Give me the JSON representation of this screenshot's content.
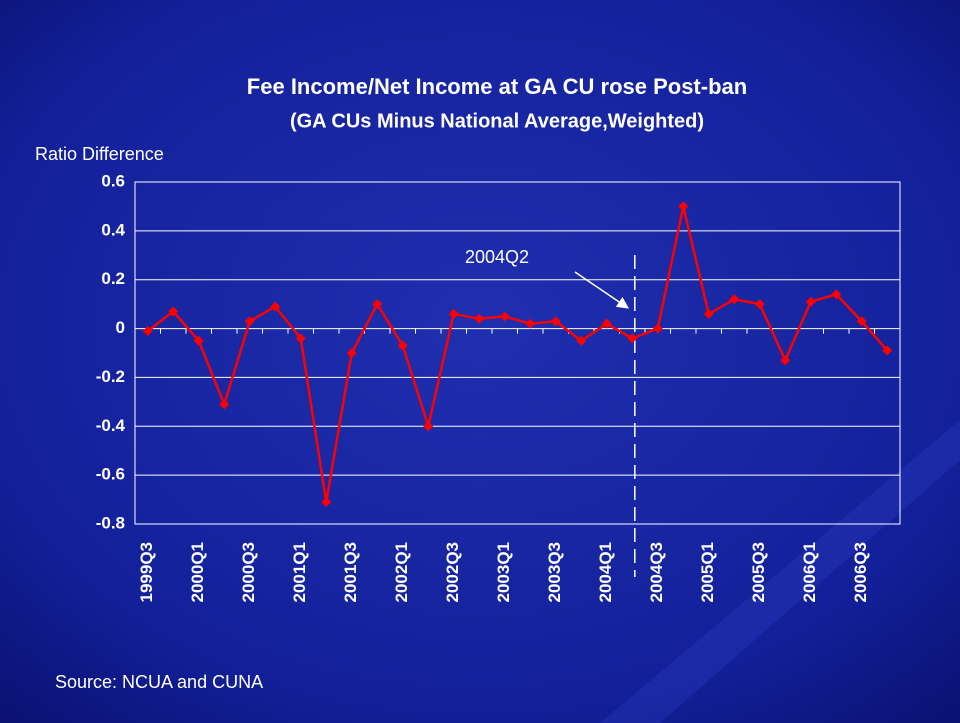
{
  "chart_data": {
    "type": "line",
    "title": "Fee Income/Net Income at GA CU rose Post-ban",
    "subtitle": "(GA CUs Minus National Average,Weighted)",
    "y_label": "Ratio Difference",
    "source": "Source: NCUA and CUNA",
    "annotation": "2004Q2",
    "categories": [
      "1999Q3",
      null,
      "2000Q1",
      null,
      "2000Q3",
      null,
      "2001Q1",
      null,
      "2001Q3",
      null,
      "2002Q1",
      null,
      "2002Q3",
      null,
      "2003Q1",
      null,
      "2003Q3",
      null,
      "2004Q1",
      null,
      "2004Q3",
      null,
      "2005Q1",
      null,
      "2005Q3",
      null,
      "2006Q1",
      null,
      "2006Q3",
      null
    ],
    "series": [
      {
        "name": "GA CUs Minus National Average",
        "color": "#ff0000",
        "values": [
          -0.01,
          0.07,
          -0.05,
          -0.31,
          0.03,
          0.09,
          -0.04,
          -0.71,
          -0.1,
          0.1,
          -0.07,
          -0.4,
          0.06,
          0.04,
          0.05,
          0.02,
          0.03,
          -0.05,
          0.02,
          -0.04,
          0.0,
          0.5,
          0.06,
          0.12,
          0.1,
          -0.13,
          0.11,
          0.14,
          0.03,
          -0.09
        ]
      }
    ],
    "ylim": [
      -0.8,
      0.6
    ],
    "yticks": [
      -0.8,
      -0.6,
      -0.4,
      -0.2,
      0,
      0.2,
      0.4,
      0.6
    ],
    "grid": true
  }
}
